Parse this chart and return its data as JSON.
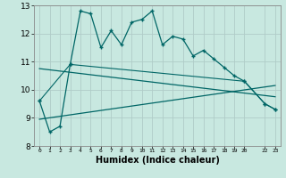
{
  "title": "",
  "xlabel": "Humidex (Indice chaleur)",
  "ylabel": "",
  "bg_color": "#c8e8e0",
  "grid_color": "#b0ccc8",
  "line_color": "#006666",
  "xlim": [
    -0.5,
    23.5
  ],
  "ylim": [
    8,
    13
  ],
  "yticks": [
    8,
    9,
    10,
    11,
    12,
    13
  ],
  "xtick_positions": [
    0,
    1,
    2,
    3,
    4,
    5,
    6,
    7,
    8,
    9,
    10,
    11,
    12,
    13,
    14,
    15,
    16,
    17,
    18,
    19,
    20,
    22,
    23
  ],
  "xtick_labels": [
    "0",
    "1",
    "2",
    "3",
    "4",
    "5",
    "6",
    "7",
    "8",
    "9",
    "10",
    "11",
    "12",
    "13",
    "14",
    "15",
    "16",
    "17",
    "18",
    "19",
    "20",
    "22",
    "23"
  ],
  "series1_x": [
    0,
    1,
    2,
    3,
    4,
    5,
    6,
    7,
    8,
    9,
    10,
    11,
    12,
    13,
    14,
    15,
    16,
    17,
    18,
    19,
    20,
    22,
    23
  ],
  "series1_y": [
    9.6,
    8.5,
    8.7,
    10.9,
    12.8,
    12.7,
    11.5,
    12.1,
    11.6,
    12.4,
    12.5,
    12.8,
    11.6,
    11.9,
    11.8,
    11.2,
    11.4,
    11.1,
    10.8,
    10.5,
    10.3,
    9.5,
    9.3
  ],
  "trend1_x": [
    0,
    23
  ],
  "trend1_y": [
    10.75,
    9.75
  ],
  "trend2_x": [
    0,
    23
  ],
  "trend2_y": [
    8.95,
    10.15
  ],
  "series2_x": [
    0,
    3,
    20,
    22,
    23
  ],
  "series2_y": [
    9.6,
    10.9,
    10.3,
    9.5,
    9.3
  ]
}
